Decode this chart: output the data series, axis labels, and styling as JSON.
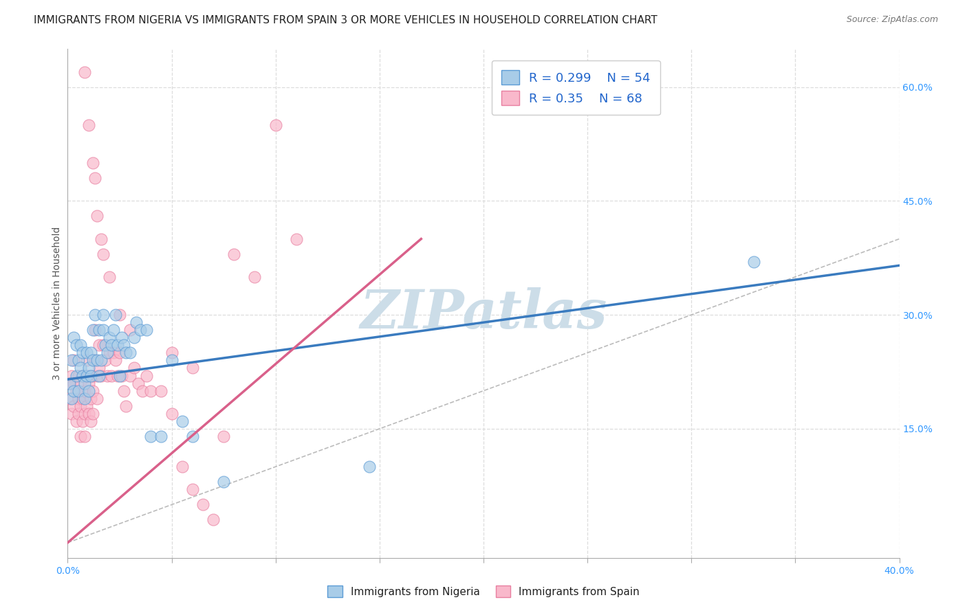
{
  "title": "IMMIGRANTS FROM NIGERIA VS IMMIGRANTS FROM SPAIN 3 OR MORE VEHICLES IN HOUSEHOLD CORRELATION CHART",
  "source": "Source: ZipAtlas.com",
  "ylabel": "3 or more Vehicles in Household",
  "xlim": [
    0.0,
    0.4
  ],
  "ylim": [
    -0.02,
    0.65
  ],
  "xticks": [
    0.0,
    0.05,
    0.1,
    0.15,
    0.2,
    0.25,
    0.3,
    0.35,
    0.4
  ],
  "yticks_right": [
    0.15,
    0.3,
    0.45,
    0.6
  ],
  "ytick_right_labels": [
    "15.0%",
    "30.0%",
    "45.0%",
    "60.0%"
  ],
  "nigeria_color": "#a8cce8",
  "nigeria_edge": "#5b9bd5",
  "nigeria_line_color": "#3a7bbf",
  "spain_color": "#f9b8cb",
  "spain_edge": "#e87fa0",
  "spain_line_color": "#d9608a",
  "nigeria_R": 0.299,
  "nigeria_N": 54,
  "spain_R": 0.35,
  "spain_N": 68,
  "watermark": "ZIPatlas",
  "watermark_color": "#ccdde8",
  "background_color": "#ffffff",
  "grid_color": "#dddddd",
  "title_fontsize": 11,
  "label_fontsize": 10,
  "tick_fontsize": 10,
  "legend_fontsize": 13,
  "nigeria_scatter_x": [
    0.001,
    0.002,
    0.002,
    0.003,
    0.003,
    0.004,
    0.004,
    0.005,
    0.005,
    0.006,
    0.006,
    0.007,
    0.007,
    0.008,
    0.008,
    0.009,
    0.009,
    0.01,
    0.01,
    0.011,
    0.011,
    0.012,
    0.012,
    0.013,
    0.014,
    0.015,
    0.015,
    0.016,
    0.017,
    0.017,
    0.018,
    0.019,
    0.02,
    0.021,
    0.022,
    0.023,
    0.024,
    0.025,
    0.026,
    0.027,
    0.028,
    0.03,
    0.032,
    0.033,
    0.035,
    0.038,
    0.04,
    0.045,
    0.05,
    0.055,
    0.06,
    0.075,
    0.145,
    0.33
  ],
  "nigeria_scatter_y": [
    0.21,
    0.24,
    0.19,
    0.27,
    0.2,
    0.22,
    0.26,
    0.24,
    0.2,
    0.23,
    0.26,
    0.22,
    0.25,
    0.21,
    0.19,
    0.22,
    0.25,
    0.23,
    0.2,
    0.25,
    0.22,
    0.24,
    0.28,
    0.3,
    0.24,
    0.28,
    0.22,
    0.24,
    0.3,
    0.28,
    0.26,
    0.25,
    0.27,
    0.26,
    0.28,
    0.3,
    0.26,
    0.22,
    0.27,
    0.26,
    0.25,
    0.25,
    0.27,
    0.29,
    0.28,
    0.28,
    0.14,
    0.14,
    0.24,
    0.16,
    0.14,
    0.08,
    0.1,
    0.37
  ],
  "spain_scatter_x": [
    0.001,
    0.001,
    0.002,
    0.002,
    0.003,
    0.003,
    0.003,
    0.004,
    0.004,
    0.005,
    0.005,
    0.005,
    0.006,
    0.006,
    0.006,
    0.007,
    0.007,
    0.007,
    0.008,
    0.008,
    0.008,
    0.009,
    0.009,
    0.009,
    0.01,
    0.01,
    0.01,
    0.011,
    0.011,
    0.012,
    0.012,
    0.012,
    0.013,
    0.013,
    0.014,
    0.014,
    0.015,
    0.015,
    0.016,
    0.017,
    0.018,
    0.019,
    0.02,
    0.021,
    0.022,
    0.023,
    0.024,
    0.025,
    0.026,
    0.027,
    0.028,
    0.03,
    0.032,
    0.034,
    0.036,
    0.038,
    0.04,
    0.045,
    0.05,
    0.055,
    0.06,
    0.065,
    0.07,
    0.075,
    0.08,
    0.09,
    0.1,
    0.11
  ],
  "spain_scatter_y": [
    0.21,
    0.19,
    0.22,
    0.17,
    0.24,
    0.21,
    0.18,
    0.2,
    0.16,
    0.19,
    0.22,
    0.17,
    0.21,
    0.18,
    0.14,
    0.22,
    0.19,
    0.16,
    0.2,
    0.17,
    0.14,
    0.24,
    0.22,
    0.18,
    0.21,
    0.17,
    0.22,
    0.19,
    0.16,
    0.22,
    0.2,
    0.17,
    0.24,
    0.28,
    0.22,
    0.19,
    0.26,
    0.23,
    0.22,
    0.26,
    0.24,
    0.22,
    0.25,
    0.22,
    0.25,
    0.24,
    0.22,
    0.25,
    0.22,
    0.2,
    0.18,
    0.22,
    0.23,
    0.21,
    0.2,
    0.22,
    0.2,
    0.2,
    0.17,
    0.1,
    0.07,
    0.05,
    0.03,
    0.14,
    0.38,
    0.35,
    0.55,
    0.4
  ],
  "spain_high_x": [
    0.008,
    0.01,
    0.012,
    0.013,
    0.014,
    0.016,
    0.017,
    0.02,
    0.025,
    0.03,
    0.05,
    0.06
  ],
  "spain_high_y": [
    0.62,
    0.55,
    0.5,
    0.48,
    0.43,
    0.4,
    0.38,
    0.35,
    0.3,
    0.28,
    0.25,
    0.23
  ],
  "nigeria_trend_x": [
    0.0,
    0.4
  ],
  "nigeria_trend_y": [
    0.215,
    0.365
  ],
  "spain_trend_x": [
    0.0,
    0.17
  ],
  "spain_trend_y": [
    0.0,
    0.4
  ]
}
